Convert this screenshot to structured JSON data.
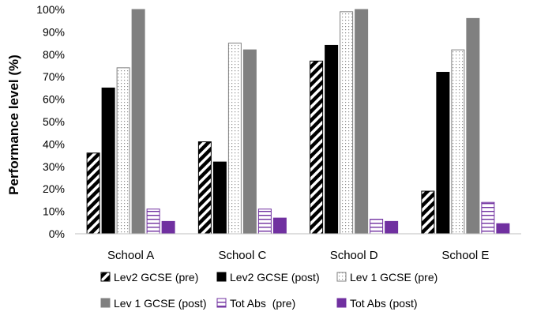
{
  "chart_data": {
    "type": "bar",
    "title": "",
    "xlabel": "",
    "ylabel": "Performance level (%)",
    "ylim": [
      0,
      100
    ],
    "y_ticks": [
      "0%",
      "10%",
      "20%",
      "30%",
      "40%",
      "50%",
      "60%",
      "70%",
      "80%",
      "90%",
      "100%"
    ],
    "categories": [
      "School A",
      "School C",
      "School D",
      "School E"
    ],
    "series": [
      {
        "name": "Lev2 GCSE (pre)",
        "values": [
          36,
          41,
          77,
          19
        ],
        "style": "diagonal-hatch",
        "color": "#000000"
      },
      {
        "name": "Lev2 GCSE (post)",
        "values": [
          65,
          32,
          84,
          72
        ],
        "style": "solid",
        "color": "#000000"
      },
      {
        "name": "Lev 1 GCSE (pre)",
        "values": [
          74,
          85,
          99,
          82
        ],
        "style": "dotted",
        "color": "#808080"
      },
      {
        "name": "Lev 1 GCSE (post)",
        "values": [
          100,
          82,
          100,
          96
        ],
        "style": "solid",
        "color": "#808080"
      },
      {
        "name": "Tot Abs  (pre)",
        "values": [
          11,
          11,
          6.5,
          14
        ],
        "style": "horizontal-lines",
        "color": "#7030a0"
      },
      {
        "name": "Tot Abs (post)",
        "values": [
          5.5,
          7,
          5.5,
          4.5
        ],
        "style": "solid",
        "color": "#7030a0"
      }
    ],
    "legend_position": "bottom",
    "grid": false
  }
}
